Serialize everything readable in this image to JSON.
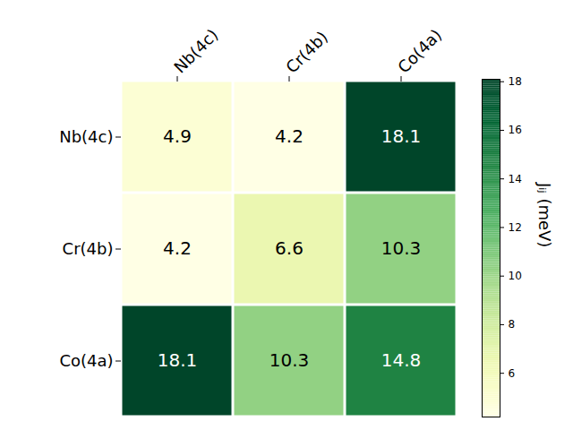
{
  "chart_data": {
    "type": "heatmap",
    "rows": [
      "Nb(4c)",
      "Cr(4b)",
      "Co(4a)"
    ],
    "columns": [
      "Nb(4c)",
      "Cr(4b)",
      "Co(4a)"
    ],
    "values": [
      [
        4.9,
        4.2,
        18.1
      ],
      [
        4.2,
        6.6,
        10.3
      ],
      [
        18.1,
        10.3,
        14.8
      ]
    ],
    "data_labels": true,
    "color": "YlGn",
    "colorbar": {
      "range": [
        4.2,
        18.1
      ],
      "ticks": [
        6,
        8,
        10,
        12,
        14,
        16,
        18
      ],
      "label": "Jᵢⱼ (meV)"
    }
  }
}
